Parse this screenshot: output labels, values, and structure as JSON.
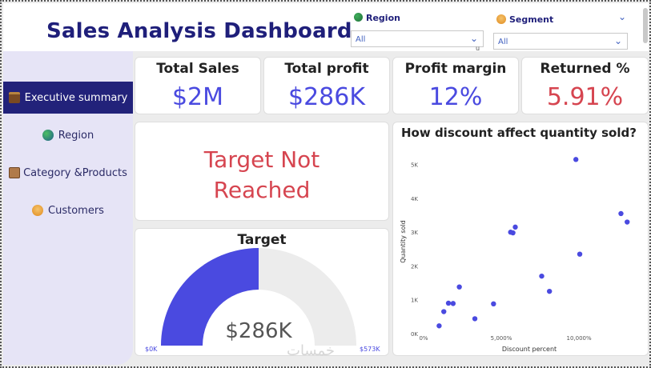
{
  "header": {
    "title": "Sales Analysis Dashboard",
    "slicers": [
      {
        "label": "Region",
        "value": "All",
        "icon": "globe-icon"
      },
      {
        "label": "Segment",
        "value": "All",
        "icon": "person-icon"
      }
    ],
    "stray_glyph": "u"
  },
  "sidebar": {
    "items": [
      {
        "label": "Executive summary",
        "icon": "briefcase-icon",
        "active": true
      },
      {
        "label": "Region",
        "icon": "globe-icon",
        "active": false
      },
      {
        "label": "Category &Products",
        "icon": "box-icon",
        "active": false
      },
      {
        "label": "Customers",
        "icon": "person-icon",
        "active": false
      }
    ]
  },
  "kpis": [
    {
      "label": "Total Sales",
      "value": "$2M",
      "color": "#4a4ae0"
    },
    {
      "label": "Total profit",
      "value": "$286K",
      "color": "#4a4ae0"
    },
    {
      "label": "Profit margin",
      "value": "12%",
      "color": "#4a4ae0"
    },
    {
      "label": "Returned %",
      "value": "5.91%",
      "color": "#d64550"
    }
  ],
  "target_status": {
    "line1": "Target Not",
    "line2": "Reached"
  },
  "gauge": {
    "title": "Target",
    "value_label": "$286K",
    "min_label": "$0K",
    "max_label": "$573K",
    "fraction": 0.5,
    "fill_color": "#4a4ae0",
    "track_color": "#ececec"
  },
  "watermark": "خمسات",
  "chart_data": {
    "type": "scatter",
    "title": "How discount affect quantity sold?",
    "xlabel": "Discount percent",
    "ylabel": "Quantity sold",
    "x_ticks": [
      {
        "value": 0,
        "label": "0%"
      },
      {
        "value": 5000,
        "label": "5,000%"
      },
      {
        "value": 10000,
        "label": "10,000%"
      }
    ],
    "y_ticks": [
      {
        "value": 0,
        "label": "0K"
      },
      {
        "value": 1000,
        "label": "1K"
      },
      {
        "value": 2000,
        "label": "2K"
      },
      {
        "value": 3000,
        "label": "3K"
      },
      {
        "value": 4000,
        "label": "4K"
      },
      {
        "value": 5000,
        "label": "5K"
      }
    ],
    "xlim": [
      0,
      13500
    ],
    "ylim": [
      0,
      5300
    ],
    "point_color": "#4a4ae0",
    "points": [
      {
        "x": 1000,
        "y": 230
      },
      {
        "x": 1300,
        "y": 650
      },
      {
        "x": 1600,
        "y": 900
      },
      {
        "x": 1900,
        "y": 890
      },
      {
        "x": 2300,
        "y": 1380
      },
      {
        "x": 3300,
        "y": 440
      },
      {
        "x": 4500,
        "y": 880
      },
      {
        "x": 5600,
        "y": 3000
      },
      {
        "x": 5750,
        "y": 2980
      },
      {
        "x": 5900,
        "y": 3150
      },
      {
        "x": 7600,
        "y": 1700
      },
      {
        "x": 8100,
        "y": 1250
      },
      {
        "x": 9800,
        "y": 5150
      },
      {
        "x": 10050,
        "y": 2350
      },
      {
        "x": 12700,
        "y": 3550
      },
      {
        "x": 13100,
        "y": 3300
      }
    ]
  }
}
